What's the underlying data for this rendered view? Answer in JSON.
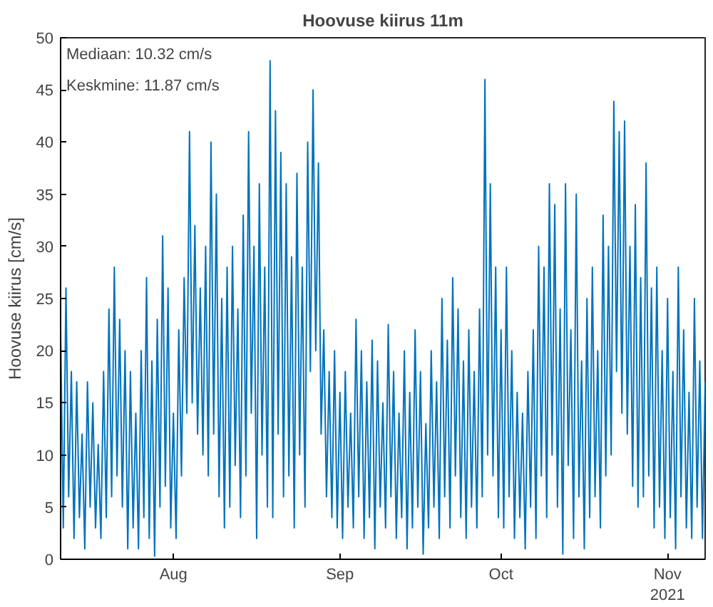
{
  "chart_data": {
    "type": "line",
    "title": "Hoovuse kiirus 11m",
    "ylabel": "Hoovuse kiirus [cm/s]",
    "annotations": [
      "Mediaan: 10.32 cm/s",
      "Keskmine: 11.87 cm/s"
    ],
    "xlim": [
      "2021-07-11",
      "2021-11-08"
    ],
    "ylim": [
      0,
      50
    ],
    "xticks": [
      {
        "value": "2021-08-01",
        "label": "Aug"
      },
      {
        "value": "2021-09-01",
        "label": "Sep"
      },
      {
        "value": "2021-10-01",
        "label": "Oct"
      },
      {
        "value": "2021-11-01",
        "label": "Nov\n2021"
      }
    ],
    "yticks": [
      0,
      5,
      10,
      15,
      20,
      25,
      30,
      35,
      40,
      45,
      50
    ],
    "grid": false,
    "line_style": "solid",
    "series": [
      {
        "color": "#0072bd",
        "x": [
          "2021-07-11T00:00",
          "2021-07-11T12:00",
          "2021-07-12T00:00",
          "2021-07-12T12:00",
          "2021-07-13T00:00",
          "2021-07-13T12:00",
          "2021-07-14T00:00",
          "2021-07-14T12:00",
          "2021-07-15T00:00",
          "2021-07-15T12:00",
          "2021-07-16T00:00",
          "2021-07-16T12:00",
          "2021-07-17T00:00",
          "2021-07-17T12:00",
          "2021-07-18T00:00",
          "2021-07-18T12:00",
          "2021-07-19T00:00",
          "2021-07-19T12:00",
          "2021-07-20T00:00",
          "2021-07-20T12:00",
          "2021-07-21T00:00",
          "2021-07-21T12:00",
          "2021-07-22T00:00",
          "2021-07-22T12:00",
          "2021-07-23T00:00",
          "2021-07-23T12:00",
          "2021-07-24T00:00",
          "2021-07-24T12:00",
          "2021-07-25T00:00",
          "2021-07-25T12:00",
          "2021-07-26T00:00",
          "2021-07-26T12:00",
          "2021-07-27T00:00",
          "2021-07-27T12:00",
          "2021-07-28T00:00",
          "2021-07-28T12:00",
          "2021-07-29T00:00",
          "2021-07-29T12:00",
          "2021-07-30T00:00",
          "2021-07-30T12:00",
          "2021-07-31T00:00",
          "2021-07-31T12:00",
          "2021-08-01T00:00",
          "2021-08-01T12:00",
          "2021-08-02T00:00",
          "2021-08-02T12:00",
          "2021-08-03T00:00",
          "2021-08-03T12:00",
          "2021-08-04T00:00",
          "2021-08-04T12:00",
          "2021-08-05T00:00",
          "2021-08-05T12:00",
          "2021-08-06T00:00",
          "2021-08-06T12:00",
          "2021-08-07T00:00",
          "2021-08-07T12:00",
          "2021-08-08T00:00",
          "2021-08-08T12:00",
          "2021-08-09T00:00",
          "2021-08-09T12:00",
          "2021-08-10T00:00",
          "2021-08-10T12:00",
          "2021-08-11T00:00",
          "2021-08-11T12:00",
          "2021-08-12T00:00",
          "2021-08-12T12:00",
          "2021-08-13T00:00",
          "2021-08-13T12:00",
          "2021-08-14T00:00",
          "2021-08-14T12:00",
          "2021-08-15T00:00",
          "2021-08-15T12:00",
          "2021-08-16T00:00",
          "2021-08-16T12:00",
          "2021-08-17T00:00",
          "2021-08-17T12:00",
          "2021-08-18T00:00",
          "2021-08-18T12:00",
          "2021-08-19T00:00",
          "2021-08-19T12:00",
          "2021-08-20T00:00",
          "2021-08-20T12:00",
          "2021-08-21T00:00",
          "2021-08-21T12:00",
          "2021-08-22T00:00",
          "2021-08-22T12:00",
          "2021-08-23T00:00",
          "2021-08-23T12:00",
          "2021-08-24T00:00",
          "2021-08-24T12:00",
          "2021-08-25T00:00",
          "2021-08-25T12:00",
          "2021-08-26T00:00",
          "2021-08-26T12:00",
          "2021-08-27T00:00",
          "2021-08-27T12:00",
          "2021-08-28T00:00",
          "2021-08-28T12:00",
          "2021-08-29T00:00",
          "2021-08-29T12:00",
          "2021-08-30T00:00",
          "2021-08-30T12:00",
          "2021-08-31T00:00",
          "2021-08-31T12:00",
          "2021-09-01T00:00",
          "2021-09-01T12:00",
          "2021-09-02T00:00",
          "2021-09-02T12:00",
          "2021-09-03T00:00",
          "2021-09-03T12:00",
          "2021-09-04T00:00",
          "2021-09-04T12:00",
          "2021-09-05T00:00",
          "2021-09-05T12:00",
          "2021-09-06T00:00",
          "2021-09-06T12:00",
          "2021-09-07T00:00",
          "2021-09-07T12:00",
          "2021-09-08T00:00",
          "2021-09-08T12:00",
          "2021-09-09T00:00",
          "2021-09-09T12:00",
          "2021-09-10T00:00",
          "2021-09-10T12:00",
          "2021-09-11T00:00",
          "2021-09-11T12:00",
          "2021-09-12T00:00",
          "2021-09-12T12:00",
          "2021-09-13T00:00",
          "2021-09-13T12:00",
          "2021-09-14T00:00",
          "2021-09-14T12:00",
          "2021-09-15T00:00",
          "2021-09-15T12:00",
          "2021-09-16T00:00",
          "2021-09-16T12:00",
          "2021-09-17T00:00",
          "2021-09-17T12:00",
          "2021-09-18T00:00",
          "2021-09-18T12:00",
          "2021-09-19T00:00",
          "2021-09-19T12:00",
          "2021-09-20T00:00",
          "2021-09-20T12:00",
          "2021-09-21T00:00",
          "2021-09-21T12:00",
          "2021-09-22T00:00",
          "2021-09-22T12:00",
          "2021-09-23T00:00",
          "2021-09-23T12:00",
          "2021-09-24T00:00",
          "2021-09-24T12:00",
          "2021-09-25T00:00",
          "2021-09-25T12:00",
          "2021-09-26T00:00",
          "2021-09-26T12:00",
          "2021-09-27T00:00",
          "2021-09-27T12:00",
          "2021-09-28T00:00",
          "2021-09-28T12:00",
          "2021-09-29T00:00",
          "2021-09-29T12:00",
          "2021-09-30T00:00",
          "2021-09-30T12:00",
          "2021-10-01T00:00",
          "2021-10-01T12:00",
          "2021-10-02T00:00",
          "2021-10-02T12:00",
          "2021-10-03T00:00",
          "2021-10-03T12:00",
          "2021-10-04T00:00",
          "2021-10-04T12:00",
          "2021-10-05T00:00",
          "2021-10-05T12:00",
          "2021-10-06T00:00",
          "2021-10-06T12:00",
          "2021-10-07T00:00",
          "2021-10-07T12:00",
          "2021-10-08T00:00",
          "2021-10-08T12:00",
          "2021-10-09T00:00",
          "2021-10-09T12:00",
          "2021-10-10T00:00",
          "2021-10-10T12:00",
          "2021-10-11T00:00",
          "2021-10-11T12:00",
          "2021-10-12T00:00",
          "2021-10-12T12:00",
          "2021-10-13T00:00",
          "2021-10-13T12:00",
          "2021-10-14T00:00",
          "2021-10-14T12:00",
          "2021-10-15T00:00",
          "2021-10-15T12:00",
          "2021-10-16T00:00",
          "2021-10-16T12:00",
          "2021-10-17T00:00",
          "2021-10-17T12:00",
          "2021-10-18T00:00",
          "2021-10-18T12:00",
          "2021-10-19T00:00",
          "2021-10-19T12:00",
          "2021-10-20T00:00",
          "2021-10-20T12:00",
          "2021-10-21T00:00",
          "2021-10-21T12:00",
          "2021-10-22T00:00",
          "2021-10-22T12:00",
          "2021-10-23T00:00",
          "2021-10-23T12:00",
          "2021-10-24T00:00",
          "2021-10-24T12:00",
          "2021-10-25T00:00",
          "2021-10-25T12:00",
          "2021-10-26T00:00",
          "2021-10-26T12:00",
          "2021-10-27T00:00",
          "2021-10-27T12:00",
          "2021-10-28T00:00",
          "2021-10-28T12:00",
          "2021-10-29T00:00",
          "2021-10-29T12:00",
          "2021-10-30T00:00",
          "2021-10-30T12:00",
          "2021-10-31T00:00",
          "2021-10-31T12:00",
          "2021-11-01T00:00",
          "2021-11-01T12:00",
          "2021-11-02T00:00",
          "2021-11-02T12:00",
          "2021-11-03T00:00",
          "2021-11-03T12:00",
          "2021-11-04T00:00",
          "2021-11-04T12:00",
          "2021-11-05T00:00",
          "2021-11-05T12:00",
          "2021-11-06T00:00",
          "2021-11-06T12:00",
          "2021-11-07T00:00",
          "2021-11-07T12:00",
          "2021-11-08T00:00"
        ],
        "values": [
          22,
          3,
          26,
          6,
          18,
          2,
          17,
          4,
          12,
          1,
          17,
          5,
          15,
          3,
          11,
          2,
          18,
          4,
          24,
          6,
          28,
          8,
          23,
          5,
          20,
          1,
          18,
          3,
          14,
          1,
          20,
          4,
          27,
          2,
          19,
          0.3,
          23,
          5,
          31,
          7,
          26,
          3,
          14,
          2,
          22,
          8,
          27,
          14,
          41,
          15,
          32,
          12,
          26,
          10,
          30,
          8,
          40,
          12,
          35,
          6,
          25,
          3,
          28,
          5,
          30,
          9,
          24,
          4,
          33,
          8,
          41,
          14,
          30,
          2,
          36,
          10,
          28,
          5,
          47.8,
          4,
          43,
          12,
          39,
          6,
          36,
          8,
          29,
          3,
          37,
          10,
          28,
          5,
          40,
          18,
          45,
          20,
          38,
          12,
          22,
          6,
          18,
          4,
          20,
          3,
          16,
          2,
          18,
          5,
          14,
          3,
          23,
          6,
          20,
          2,
          17,
          4,
          21,
          1,
          19,
          5,
          15,
          3,
          22.5,
          6,
          18,
          2,
          14,
          4,
          20,
          1,
          16,
          3,
          22,
          5,
          18,
          0.5,
          13,
          3,
          20,
          5,
          17,
          2,
          25,
          6,
          21,
          3,
          27,
          8,
          24,
          4,
          19,
          2,
          22,
          5,
          18,
          3,
          24,
          6,
          46,
          10,
          36,
          8,
          28,
          4,
          22,
          3,
          28,
          6,
          20,
          2,
          16,
          4,
          14,
          1,
          18,
          5,
          22,
          2,
          30,
          8,
          28,
          4,
          36,
          10,
          34,
          5,
          24,
          0.5,
          36,
          9,
          22,
          2,
          35,
          6,
          19,
          1,
          25,
          4,
          28,
          6,
          20,
          3,
          33,
          8,
          30,
          10,
          43.9,
          18,
          41,
          14,
          42,
          12,
          30,
          7,
          34,
          5,
          27,
          6,
          38,
          8,
          26,
          3,
          28,
          5,
          20,
          2,
          25,
          4,
          18,
          1,
          28,
          6,
          22,
          3,
          16,
          2,
          25,
          5,
          19,
          2,
          17
        ]
      }
    ]
  }
}
